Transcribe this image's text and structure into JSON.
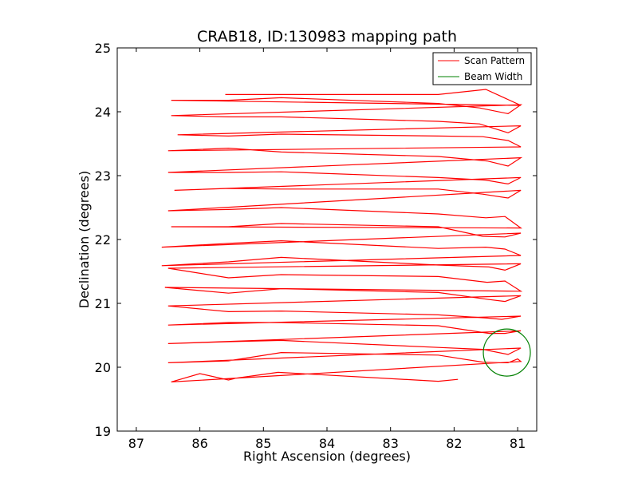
{
  "chart_data": {
    "type": "line",
    "title": "CRAB18, ID:130983 mapping path",
    "xlabel": "Right Ascension (degrees)",
    "ylabel": "Declination (degrees)",
    "xlim": [
      87.3,
      80.7
    ],
    "ylim": [
      19,
      25
    ],
    "x_ticks": [
      "87",
      "86",
      "85",
      "84",
      "83",
      "82",
      "81"
    ],
    "y_ticks": [
      "19",
      "20",
      "21",
      "22",
      "23",
      "24",
      "25"
    ],
    "legend_position": "top-right",
    "legend": [
      "Scan Pattern",
      "Beam Width"
    ],
    "colors": {
      "scan": "#ff0000",
      "beam": "#008000"
    },
    "series": [
      {
        "name": "Scan Pattern",
        "kind": "line",
        "x": [
          81.94,
          82.25,
          84.77,
          85.42,
          85.55,
          86.0,
          86.45,
          80.95,
          81.0,
          81.15,
          81.28,
          81.55,
          82.25,
          84.72,
          85.55,
          86.5,
          80.95,
          81.15,
          81.55,
          82.25,
          84.72,
          85.55,
          86.5,
          80.95,
          81.2,
          81.45,
          82.25,
          84.72,
          85.55,
          86.5,
          80.95,
          81.25,
          81.48,
          82.25,
          84.72,
          85.55,
          86.5,
          80.95,
          81.2,
          81.45,
          82.25,
          84.72,
          85.55,
          86.55,
          80.95,
          81.2,
          81.48,
          82.25,
          84.72,
          85.55,
          86.5,
          80.95,
          81.2,
          81.45,
          82.25,
          84.72,
          85.55,
          86.6,
          80.95,
          81.2,
          81.5,
          82.25,
          84.72,
          85.55,
          86.6,
          80.95,
          81.2,
          81.55,
          82.25,
          84.72,
          85.55,
          86.45,
          80.95,
          81.2,
          81.5,
          82.25,
          84.72,
          85.55,
          86.5,
          80.95,
          81.15,
          81.55,
          82.25,
          84.72,
          85.55,
          86.4,
          80.95,
          81.15,
          81.5,
          82.25,
          84.72,
          85.55,
          86.5,
          80.95,
          81.15,
          81.48,
          82.25,
          84.72,
          85.55,
          86.5,
          80.95,
          81.15,
          81.55,
          82.25,
          84.72,
          85.55,
          86.35,
          80.95,
          81.15,
          81.6,
          82.25,
          84.72,
          85.55,
          86.45,
          80.95,
          81.15,
          81.6,
          82.25,
          84.72,
          85.55,
          86.45,
          80.95,
          81.5,
          82.25,
          85.6
        ],
        "y": [
          19.81,
          19.78,
          19.92,
          19.83,
          19.8,
          19.9,
          19.77,
          20.09,
          20.13,
          20.07,
          20.07,
          20.08,
          20.19,
          20.23,
          20.1,
          20.07,
          20.3,
          20.2,
          20.28,
          20.31,
          20.42,
          20.4,
          20.37,
          20.57,
          20.53,
          20.53,
          20.65,
          20.7,
          20.7,
          20.66,
          20.8,
          20.75,
          20.77,
          20.82,
          20.88,
          20.87,
          20.96,
          21.12,
          21.03,
          21.06,
          21.17,
          21.23,
          21.16,
          21.25,
          21.19,
          21.35,
          21.33,
          21.42,
          21.45,
          21.4,
          21.55,
          21.62,
          21.52,
          21.57,
          21.6,
          21.72,
          21.65,
          21.59,
          21.75,
          21.85,
          21.88,
          21.86,
          21.98,
          21.94,
          21.88,
          22.1,
          22.04,
          22.05,
          22.2,
          22.25,
          22.2,
          22.2,
          22.18,
          22.36,
          22.34,
          22.4,
          22.5,
          22.47,
          22.45,
          22.77,
          22.65,
          22.71,
          22.79,
          22.79,
          22.8,
          22.77,
          22.97,
          22.87,
          22.93,
          22.97,
          23.06,
          23.05,
          23.05,
          23.28,
          23.15,
          23.23,
          23.3,
          23.37,
          23.43,
          23.39,
          23.45,
          23.55,
          23.61,
          23.62,
          23.65,
          23.62,
          23.64,
          23.78,
          23.67,
          23.81,
          23.85,
          23.92,
          23.92,
          23.94,
          24.11,
          23.97,
          24.06,
          24.13,
          24.22,
          24.18,
          24.18,
          24.1,
          24.35,
          24.27,
          24.27
        ]
      },
      {
        "name": "Beam Width",
        "kind": "circle",
        "center": [
          81.17,
          20.23
        ],
        "radius": 0.37
      }
    ]
  }
}
